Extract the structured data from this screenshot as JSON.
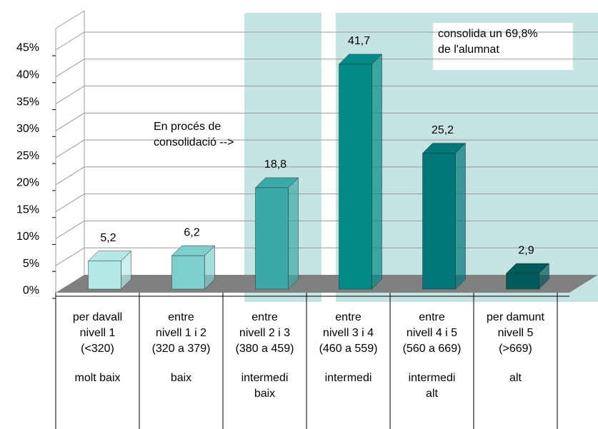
{
  "chart_data": {
    "type": "bar3d",
    "categories": [
      [
        "per davall",
        "nivell 1",
        "(<320)"
      ],
      [
        "entre",
        "nivell 1 i 2",
        "(320 a 379)"
      ],
      [
        "entre",
        "nivell 2 i 3",
        "(380 a 459)"
      ],
      [
        "entre",
        "nivell 3 i 4",
        "(460 a 559)"
      ],
      [
        "entre",
        "nivell 4 i 5",
        "(560 a 669)"
      ],
      [
        "per damunt",
        "nivell 5",
        "(>669)"
      ]
    ],
    "levels": [
      [
        "molt baix"
      ],
      [
        "baix"
      ],
      [
        "intermedi",
        "baix"
      ],
      [
        "intermedi"
      ],
      [
        "intermedi",
        "alt"
      ],
      [
        "alt"
      ]
    ],
    "values": [
      5.2,
      6.2,
      18.8,
      41.7,
      25.2,
      2.9
    ],
    "value_labels": [
      "5,2",
      "6,2",
      "18,8",
      "41,7",
      "25,2",
      "2,9"
    ],
    "colors": [
      "#b4e8e6",
      "#7dcfcd",
      "#3aa9a8",
      "#008a88",
      "#00787a",
      "#005a5a"
    ],
    "ylim": [
      0,
      45
    ],
    "yticks": [
      {
        "value": 0,
        "label": "0%"
      },
      {
        "value": 5,
        "label": "5%"
      },
      {
        "value": 10,
        "label": "10%"
      },
      {
        "value": 15,
        "label": "15%"
      },
      {
        "value": 20,
        "label": "20%"
      },
      {
        "value": 25,
        "label": "25%"
      },
      {
        "value": 30,
        "label": "30%"
      },
      {
        "value": 35,
        "label": "35%"
      },
      {
        "value": 40,
        "label": "40%"
      },
      {
        "value": 45,
        "label": "45%"
      }
    ],
    "grid": true,
    "annotations": [
      [
        "En procés de",
        "consolidació -->"
      ],
      [
        "consolida un 69,8%",
        "de l'alumnat"
      ]
    ]
  }
}
